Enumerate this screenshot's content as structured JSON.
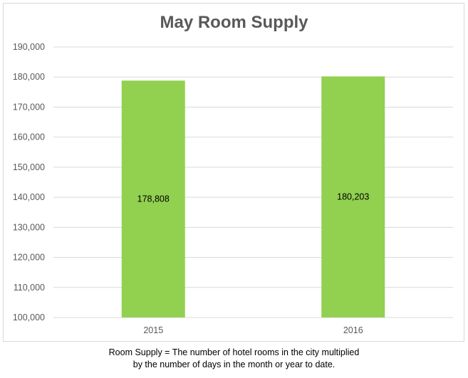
{
  "chart_data": {
    "type": "bar",
    "title": "May Room Supply",
    "categories": [
      "2015",
      "2016"
    ],
    "values": [
      178808,
      180203
    ],
    "data_labels": [
      "178,808",
      "180,203"
    ],
    "ylim": [
      100000,
      190000
    ],
    "yticks": [
      100000,
      110000,
      120000,
      130000,
      140000,
      150000,
      160000,
      170000,
      180000,
      190000
    ],
    "ytick_labels": [
      "100,000",
      "110,000",
      "120,000",
      "130,000",
      "140,000",
      "150,000",
      "160,000",
      "170,000",
      "180,000",
      "190,000"
    ],
    "xlabel": "",
    "ylabel": "",
    "grid": true,
    "legend": "none",
    "bar_color": "#92d050",
    "grid_color": "#d9d9d9"
  },
  "footnote": {
    "line1": "Room Supply = The number of hotel rooms in the city multiplied",
    "line2": "by the number of days in the month or year to date."
  }
}
